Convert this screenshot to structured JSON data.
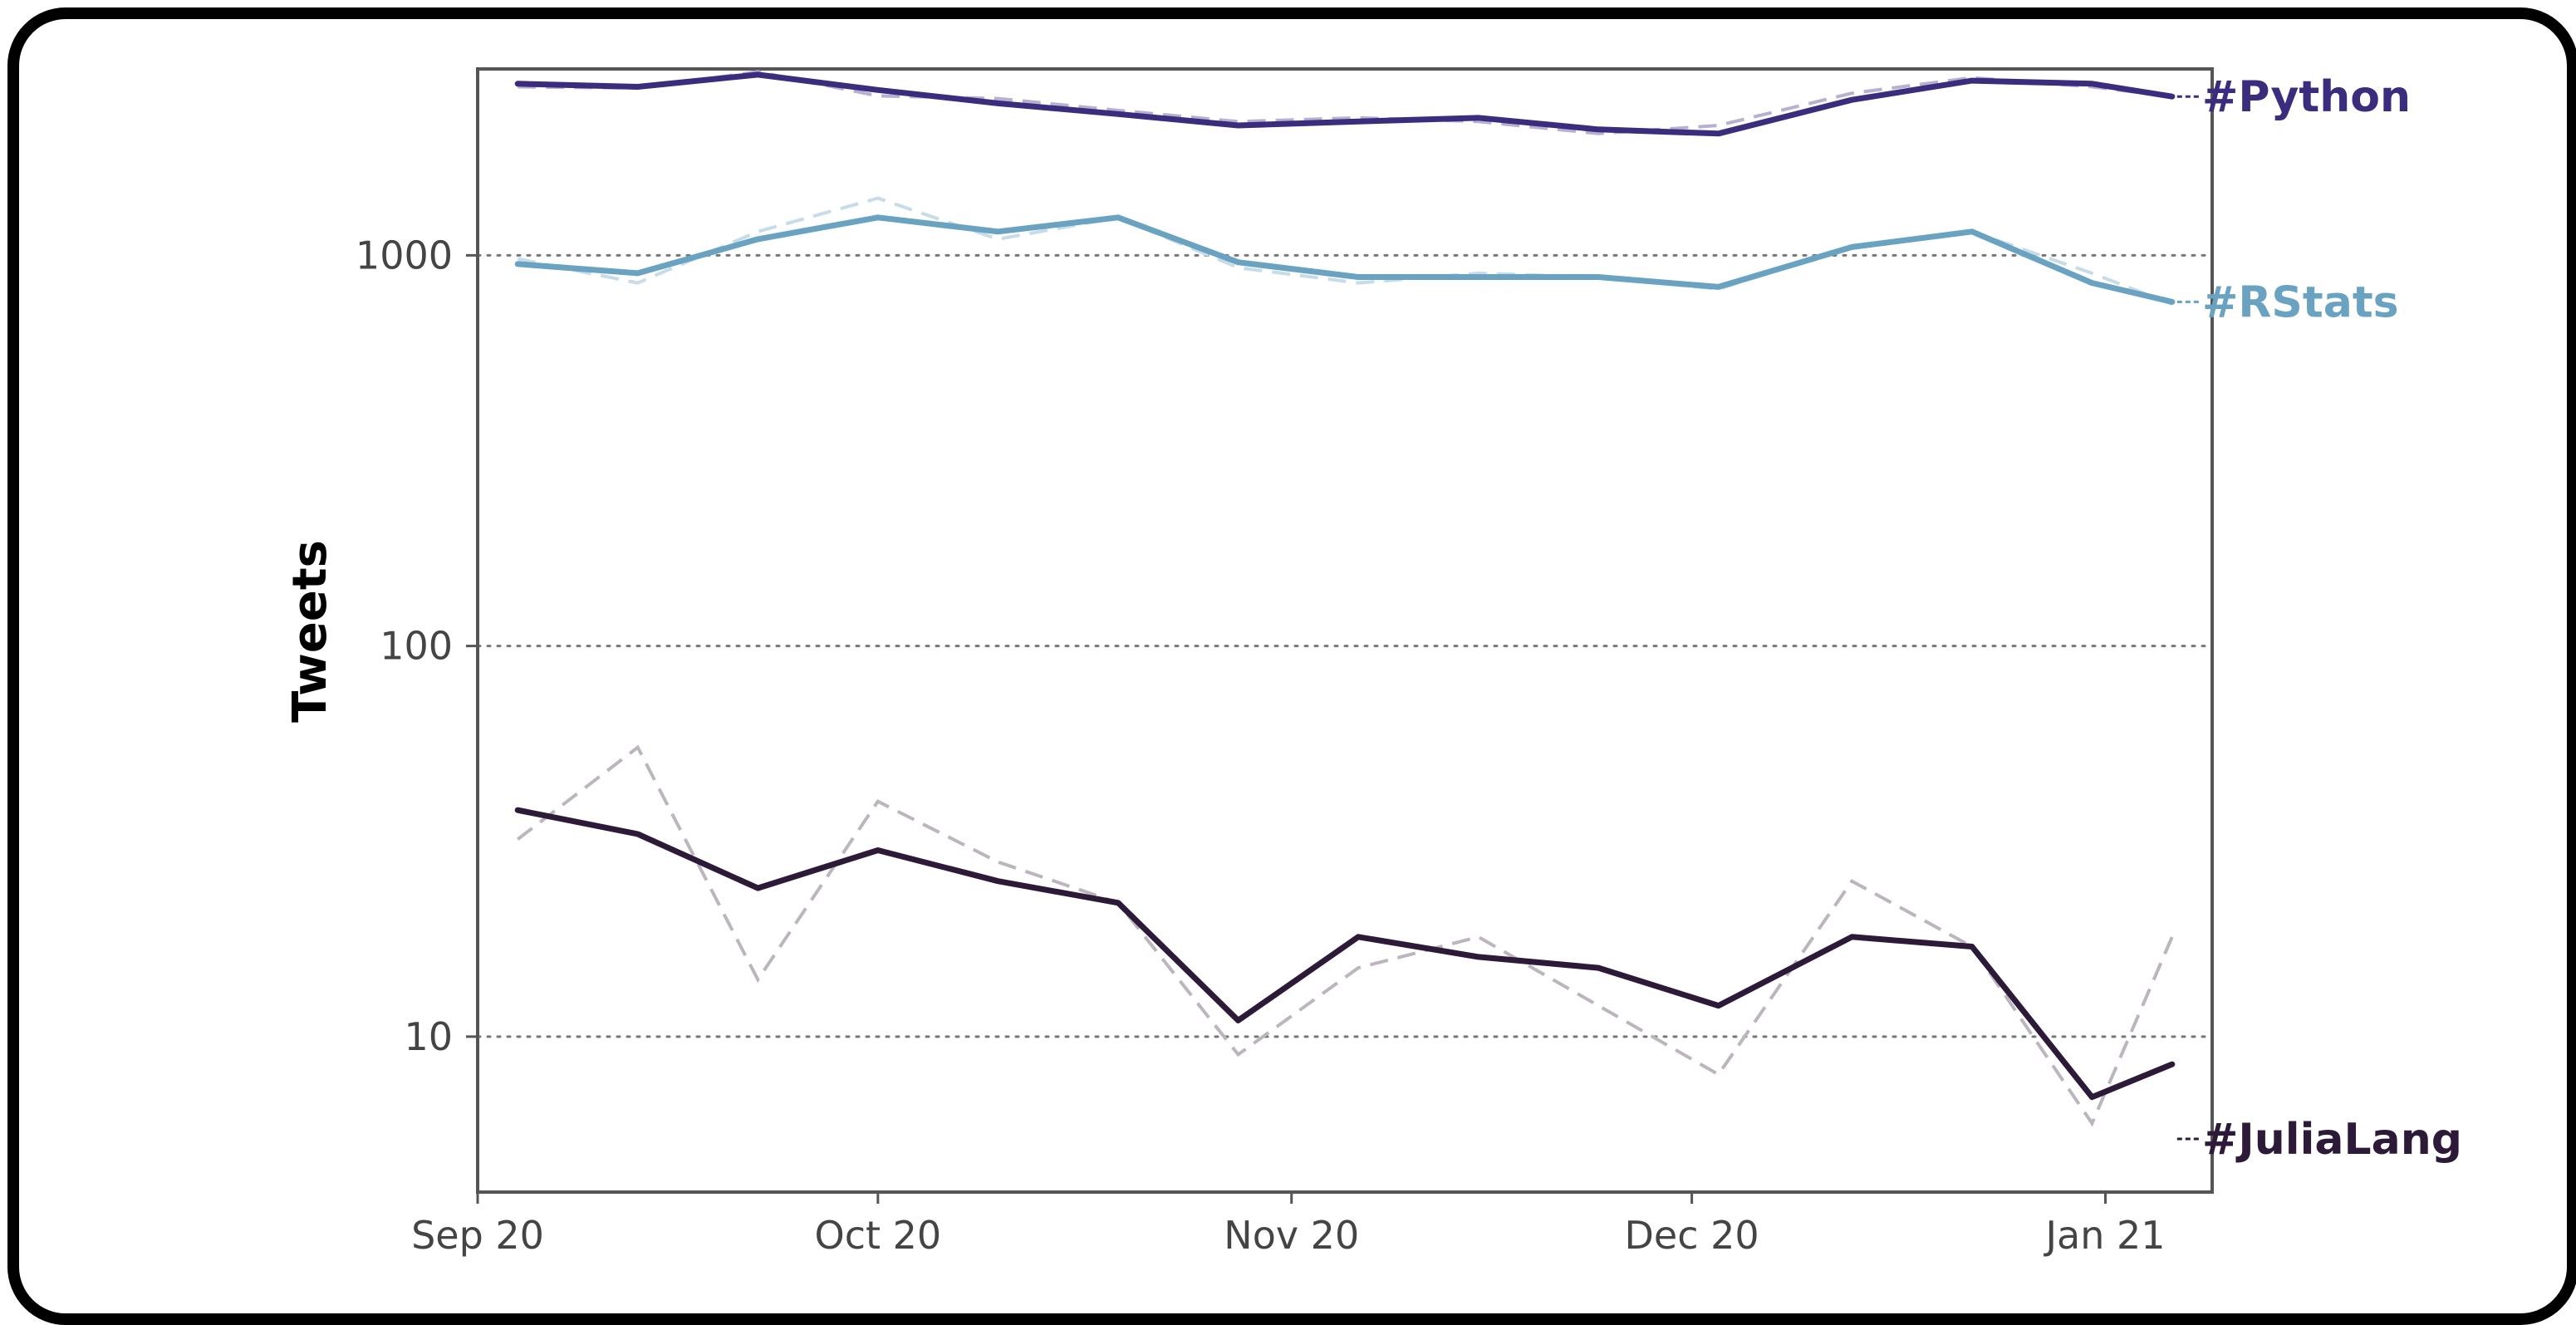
{
  "chart_data": {
    "type": "line",
    "title": "",
    "xlabel": "",
    "ylabel": "Tweets",
    "y_scale": "log10",
    "ylim": [
      4,
      3000
    ],
    "xlim": [
      "2020-09-20",
      "2021-01-28"
    ],
    "grid": "horizontal dotted at major y ticks",
    "legend": "direct labels at the right end of each series",
    "x_ticks": [
      {
        "date": "2020-09-20",
        "label": "Sep 20"
      },
      {
        "date": "2020-10-20",
        "label": "Oct 20"
      },
      {
        "date": "2020-11-20",
        "label": "Nov 20"
      },
      {
        "date": "2020-12-20",
        "label": "Dec 20"
      },
      {
        "date": "2021-01-20",
        "label": "Jan 21"
      }
    ],
    "y_ticks": [
      {
        "value": 10,
        "label": "10"
      },
      {
        "value": 100,
        "label": "100"
      },
      {
        "value": 1000,
        "label": "1000"
      }
    ],
    "x_dates": [
      "2020-09-23",
      "2020-10-02",
      "2020-10-11",
      "2020-10-20",
      "2020-10-29",
      "2020-11-07",
      "2020-11-16",
      "2020-11-25",
      "2020-12-04",
      "2020-12-13",
      "2020-12-22",
      "2021-01-01",
      "2021-01-10",
      "2021-01-19",
      "2021-01-25"
    ],
    "series": [
      {
        "name": "#Python",
        "color": "#3b2c7e",
        "raw_color": "#b8b0d0",
        "daily": [
          2700,
          2680,
          2950,
          2560,
          2520,
          2350,
          2200,
          2250,
          2200,
          2050,
          2150,
          2600,
          2850,
          2700,
          2550
        ],
        "smoothed": [
          2750,
          2700,
          2900,
          2650,
          2450,
          2300,
          2150,
          2200,
          2250,
          2100,
          2050,
          2500,
          2800,
          2750,
          2550
        ]
      },
      {
        "name": "#RStats",
        "color": "#6aa3c2",
        "raw_color": "#c6dce8",
        "daily": [
          980,
          850,
          1150,
          1400,
          1100,
          1250,
          930,
          850,
          900,
          880,
          820,
          1050,
          1150,
          900,
          750
        ],
        "smoothed": [
          950,
          900,
          1100,
          1250,
          1150,
          1250,
          960,
          880,
          880,
          880,
          830,
          1050,
          1150,
          850,
          760
        ]
      },
      {
        "name": "#JuliaLang",
        "color": "#2d1a38",
        "raw_color": "#bcb5bd",
        "daily": [
          32,
          55,
          14,
          40,
          28,
          22,
          9,
          15,
          18,
          12,
          8,
          25,
          17,
          6,
          18
        ],
        "smoothed": [
          38,
          33,
          24,
          30,
          25,
          22,
          11,
          18,
          16,
          15,
          12,
          18,
          17,
          7,
          8.5
        ]
      }
    ]
  }
}
